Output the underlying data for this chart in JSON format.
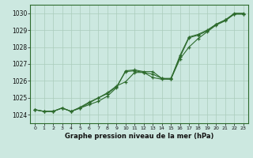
{
  "title": "Graphe pression niveau de la mer (hPa)",
  "bg_color": "#cce8e0",
  "grid_color": "#aaccbb",
  "line_color": "#2d6b2d",
  "xlim": [
    -0.5,
    23.5
  ],
  "ylim": [
    1023.5,
    1030.5
  ],
  "yticks": [
    1024,
    1025,
    1026,
    1027,
    1028,
    1029,
    1030
  ],
  "xticks": [
    0,
    1,
    2,
    3,
    4,
    5,
    6,
    7,
    8,
    9,
    10,
    11,
    12,
    13,
    14,
    15,
    16,
    17,
    18,
    19,
    20,
    21,
    22,
    23
  ],
  "series": [
    [
      1024.3,
      1024.2,
      1024.2,
      1024.4,
      1024.2,
      1024.4,
      1024.6,
      1024.8,
      1025.1,
      1025.6,
      1026.6,
      1026.65,
      1026.55,
      1026.55,
      1026.15,
      1026.1,
      1027.5,
      1028.6,
      1028.75,
      1029.0,
      1029.35,
      1029.6,
      1030.0,
      1030.0
    ],
    [
      1024.3,
      1024.2,
      1024.2,
      1024.4,
      1024.2,
      1024.4,
      1024.7,
      1025.0,
      1025.3,
      1025.7,
      1025.95,
      1026.5,
      1026.5,
      1026.2,
      1026.1,
      1026.1,
      1027.3,
      1028.0,
      1028.5,
      1028.9,
      1029.3,
      1029.55,
      1029.95,
      1029.95
    ],
    [
      1024.3,
      1024.2,
      1024.2,
      1024.4,
      1024.2,
      1024.45,
      1024.75,
      1025.0,
      1025.25,
      1025.65,
      1026.55,
      1026.6,
      1026.5,
      1026.4,
      1026.15,
      1026.15,
      1027.4,
      1028.55,
      1028.7,
      1028.95,
      1029.35,
      1029.6,
      1029.95,
      1029.95
    ]
  ]
}
